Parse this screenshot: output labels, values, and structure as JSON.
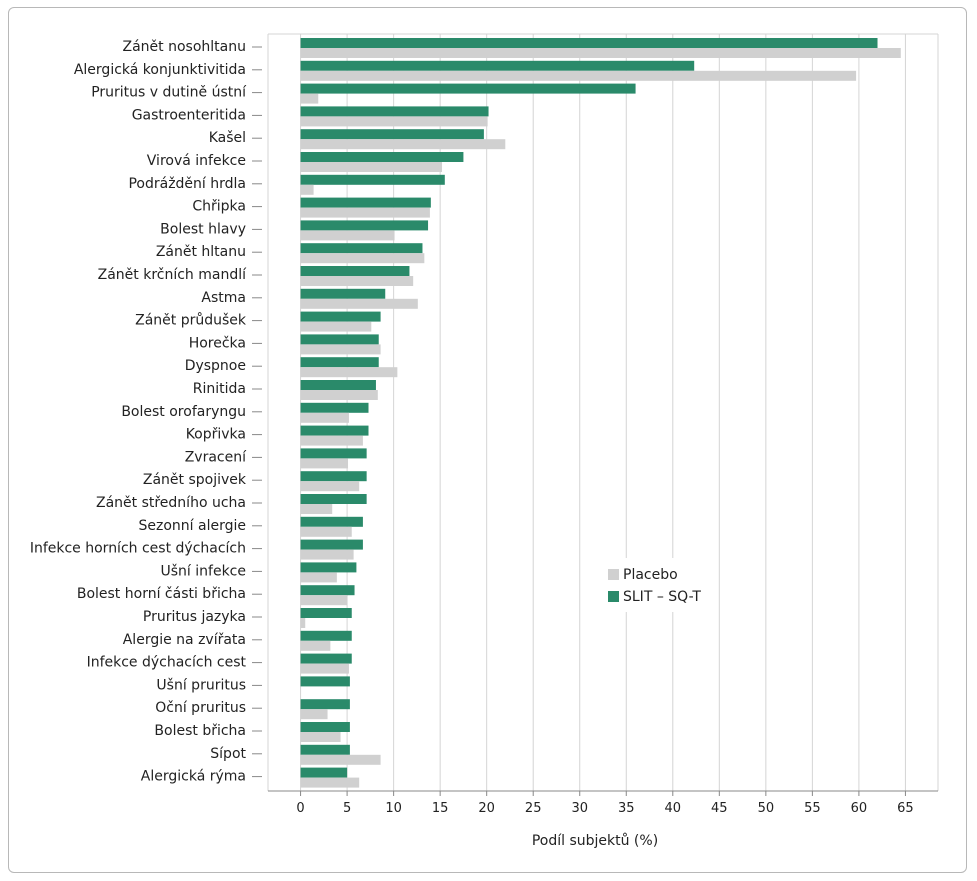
{
  "chart_data": {
    "type": "bar",
    "orientation": "horizontal",
    "xlabel": "Podíl subjektů (%)",
    "ylabel": "",
    "xlim": [
      -3.5,
      68.5
    ],
    "xticks": [
      0,
      5,
      10,
      15,
      20,
      25,
      30,
      35,
      40,
      45,
      50,
      55,
      60,
      65
    ],
    "grid": true,
    "legend_position": "right-center",
    "categories": [
      "Zánět nosohltanu",
      "Alergická konjunktivitida",
      "Pruritus v dutině ústní",
      "Gastroenteritida",
      "Kašel",
      "Virová infekce",
      "Podráždění hrdla",
      "Chřipka",
      "Bolest hlavy",
      "Zánět hltanu",
      "Zánět krčních mandlí",
      "Astma",
      "Zánět průdušek",
      "Horečka",
      "Dyspnoe",
      "Rinitida",
      "Bolest orofaryngu",
      "Kopřivka",
      "Zvracení",
      "Zánět spojivek",
      "Zánět středního ucha",
      "Sezonní alergie",
      "Infekce horních cest dýchacích",
      "Ušní infekce",
      "Bolest horní části břicha",
      "Pruritus jazyka",
      "Alergie na zvířata",
      "Infekce dýchacích cest",
      "Ušní pruritus",
      "Oční pruritus",
      "Bolest břicha",
      "Sípot",
      "Alergická rýma"
    ],
    "series": [
      {
        "name": "SLIT – SQ-T",
        "color": "#2a8a6a",
        "values": [
          62.0,
          42.3,
          36.0,
          20.2,
          19.7,
          17.5,
          15.5,
          14.0,
          13.7,
          13.1,
          11.7,
          9.1,
          8.6,
          8.4,
          8.4,
          8.1,
          7.3,
          7.3,
          7.1,
          7.1,
          7.1,
          6.7,
          6.7,
          6.0,
          5.8,
          5.5,
          5.5,
          5.5,
          5.3,
          5.3,
          5.3,
          5.3,
          5.0
        ]
      },
      {
        "name": "Placebo",
        "color": "#d0d0d0",
        "values": [
          64.5,
          59.7,
          1.9,
          20.1,
          22.0,
          15.2,
          1.4,
          13.9,
          10.1,
          13.3,
          12.1,
          12.6,
          7.6,
          8.6,
          10.4,
          8.3,
          5.2,
          6.7,
          5.1,
          6.3,
          3.4,
          5.5,
          5.7,
          3.9,
          5.0,
          0.5,
          3.2,
          5.2,
          0.0,
          2.9,
          4.3,
          8.6,
          6.3
        ]
      }
    ]
  },
  "legend": {
    "items": [
      {
        "label": "Placebo",
        "color": "#d0d0d0"
      },
      {
        "label": "SLIT – SQ-T",
        "color": "#2a8a6a"
      }
    ]
  }
}
